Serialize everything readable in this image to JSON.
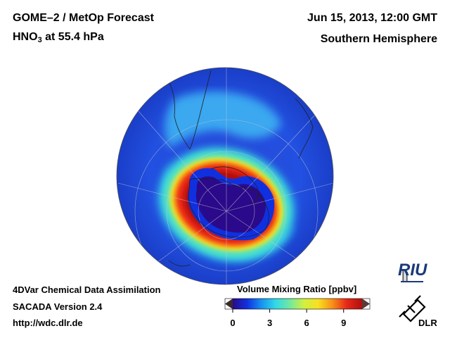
{
  "header": {
    "title_line1": "GOME–2 / MetOp Forecast",
    "species": "HNO",
    "species_sub": "3",
    "level_text": " at 55.4 hPa",
    "date": "Jun 15, 2013, 12:00 GMT",
    "region": "Southern Hemisphere"
  },
  "footer": {
    "line1": "4DVar Chemical Data Assimilation",
    "line2": "SACADA Version 2.4",
    "line3": "http://wdc.dlr.de"
  },
  "colorbar": {
    "title": "Volume Mixing Ratio [ppbv]",
    "ticks": [
      "0",
      "3",
      "6",
      "9"
    ],
    "range": [
      0,
      10.5
    ],
    "colors": [
      "#2a0a8a",
      "#1030e0",
      "#1890f0",
      "#30d8e8",
      "#70e8a0",
      "#d0f040",
      "#f8e020",
      "#f89018",
      "#e82818",
      "#b01010"
    ]
  },
  "logos": {
    "riu": "RIU",
    "dlr": "DLR"
  },
  "map": {
    "projection": "orthographic south-polar",
    "ozone_hole_value_ppbv": 1.5,
    "ring_peak_value_ppbv": 9.5,
    "outer_value_ppbv": 2.5
  }
}
